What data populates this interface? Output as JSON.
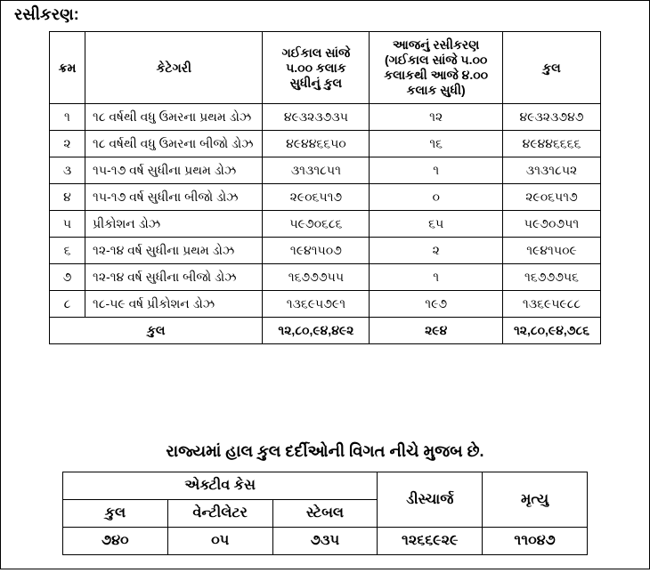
{
  "title": "રસીકરણ:",
  "table1": {
    "headers": {
      "kram": "ક્રમ",
      "category": "કેટેગરી",
      "c3": "ગઈકાલ સાંજે ૫.૦૦ કલાક સુધીનું કુલ",
      "c4": "આજનું રસીકરણ (ગઈકાલ સાંજે ૫.૦૦ કલાકથી આજે ૪.૦૦ કલાક  સુધી)",
      "c5": "કુલ"
    },
    "rows": [
      {
        "kram": "૧",
        "cat": "૧૮ વર્ષથી વધુ ઉમરના પ્રથમ ડોઝ",
        "c3": "૪૯૩૨૩૭૩૫",
        "c4": "૧૨",
        "c5": "૪૯૩૨૩૭૪૭"
      },
      {
        "kram": "૨",
        "cat": "૧૮ વર્ષથી વધુ ઉમરના બીજો ડોઝ",
        "c3": "૪૯૪૪૬૬૫૦",
        "c4": "૧૬",
        "c5": "૪૯૪૪૬૬૬૬"
      },
      {
        "kram": "૩",
        "cat": "૧૫-૧૭ વર્ષ સુધીના પ્રથમ ડોઝ",
        "c3": "૩૧૩૧૮૫૧",
        "c4": "૧",
        "c5": "૩૧૩૧૮૫૨"
      },
      {
        "kram": "૪",
        "cat": "૧૫-૧૭ વર્ષ સુધીના બીજો ડોઝ",
        "c3": "૨૯૦૬૫૧૭",
        "c4": "૦",
        "c5": "૨૯૦૬૫૧૭"
      },
      {
        "kram": "૫",
        "cat": "પ્રીકોશન ડોઝ",
        "c3": "૫૯૭૦૬૮૬",
        "c4": "૬૫",
        "c5": "૫૯૭૦૭૫૧"
      },
      {
        "kram": "૬",
        "cat": "૧૨-૧૪ વર્ષ સુધીના પ્રથમ ડોઝ",
        "c3": "૧૯૪૧૫૦૭",
        "c4": "૨",
        "c5": "૧૯૪૧૫૦૯"
      },
      {
        "kram": "૭",
        "cat": "૧૨-૧૪ વર્ષ સુધીના બીજો ડોઝ",
        "c3": "૧૬૭૭૭૫૫",
        "c4": "૧",
        "c5": "૧૬૭૭૭૫૬"
      },
      {
        "kram": "૮",
        "cat": "૧૮-૫૯ વર્ષ પ્રીકોશન ડોઝ",
        "c3": "૧૩૬૯૫૭૯૧",
        "c4": "૧૯૭",
        "c5": "૧૩૬૯૫૯૮૮"
      }
    ],
    "total": {
      "label": "કુલ",
      "c3": "૧૨,૮૦,૯૪,૪૯૨",
      "c4": "૨૯૪",
      "c5": "૧૨,૮૦,૯૪,૭૮૬"
    }
  },
  "subheading": "રાજ્યમાં હાલ કુલ દર્દીઓની વિગત નીચે મુજબ છે.",
  "table2": {
    "group_header": "એક્ટીવ કેસ",
    "headers": {
      "kul": "કુલ",
      "vent": "વેન્ટીલેટર",
      "stable": "સ્ટેબલ",
      "discharge": "ડીસ્ચાર્જ",
      "death": "મૃત્યુ"
    },
    "row": {
      "kul": "૭૪૦",
      "vent": "૦૫",
      "stable": "૭૩૫",
      "discharge": "૧૨૬૬૯૨૯",
      "death": "૧૧૦૪૭"
    }
  }
}
